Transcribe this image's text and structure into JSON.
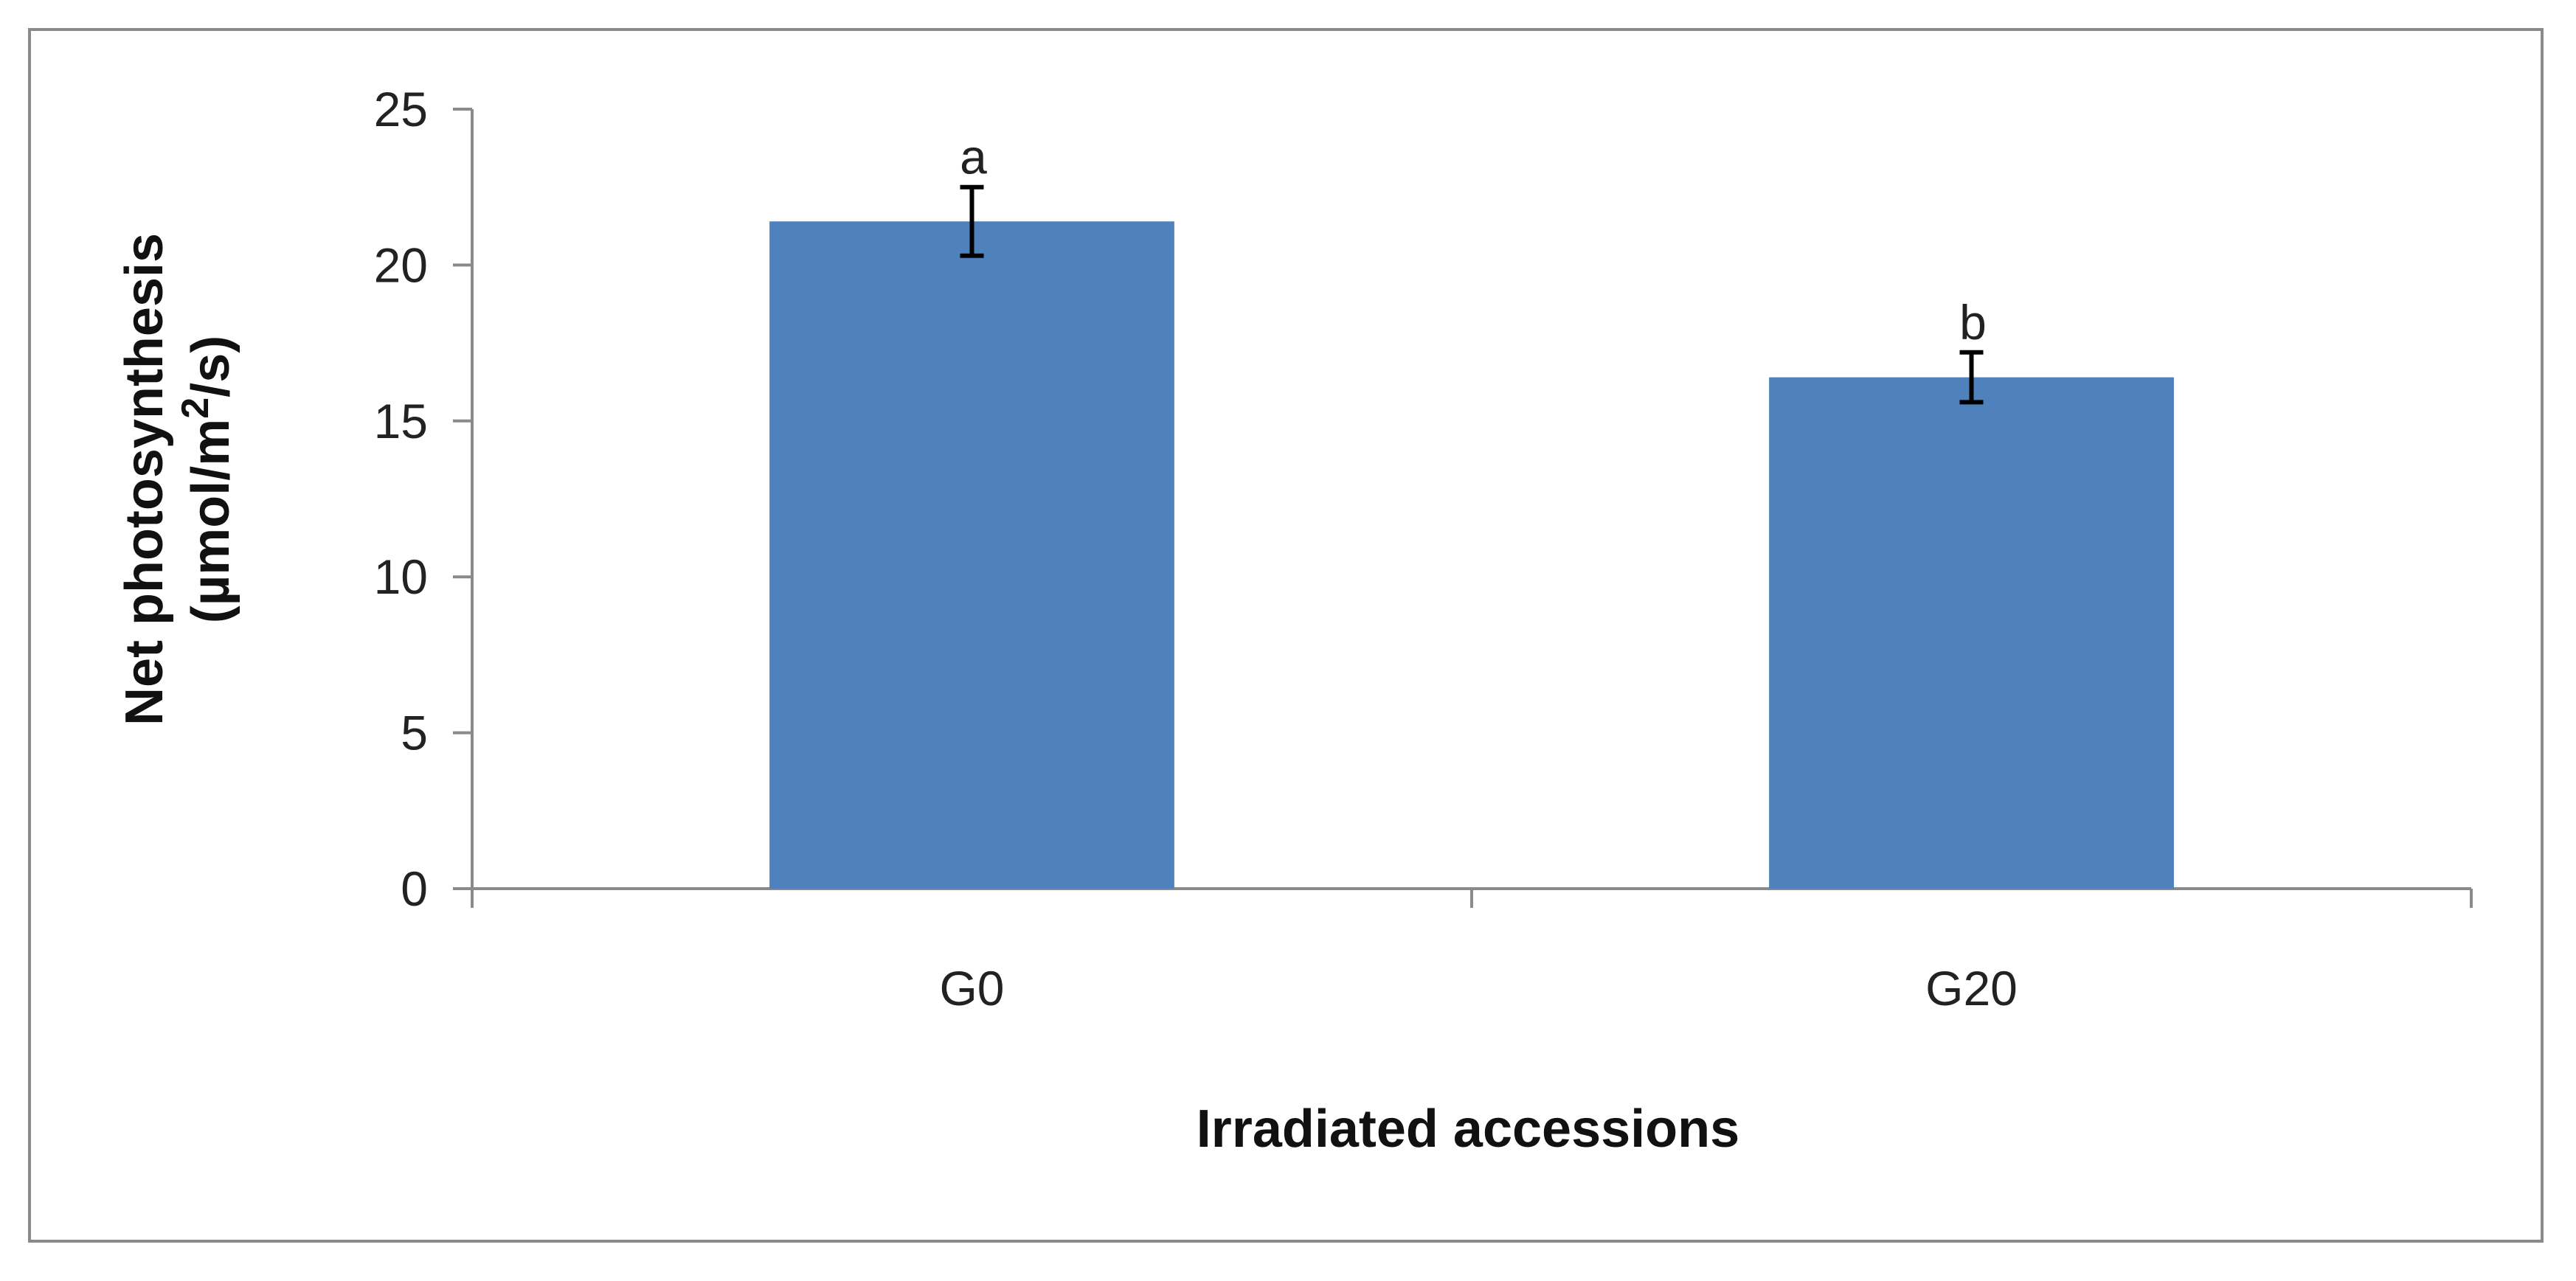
{
  "chart_data": {
    "type": "bar",
    "categories": [
      "G0",
      "G20"
    ],
    "values": [
      21.4,
      16.4
    ],
    "error": [
      1.1,
      0.8
    ],
    "significance_labels": [
      "a",
      "b"
    ],
    "title": "",
    "xlabel": "Irradiated accessions",
    "ylabel": {
      "line1": "Net photosynthesis",
      "line2_prefix": "(µmol/m",
      "line2_sup": "2",
      "line2_suffix": "/s)"
    },
    "ylim": [
      0,
      25
    ],
    "yticks": [
      0,
      5,
      10,
      15,
      20,
      25
    ],
    "grid": false,
    "legend": "none",
    "colors": {
      "bar": "#4f81bd",
      "axis": "#8a8a8a",
      "error_bar": "#000000",
      "frame": "#8a8a8a"
    }
  }
}
